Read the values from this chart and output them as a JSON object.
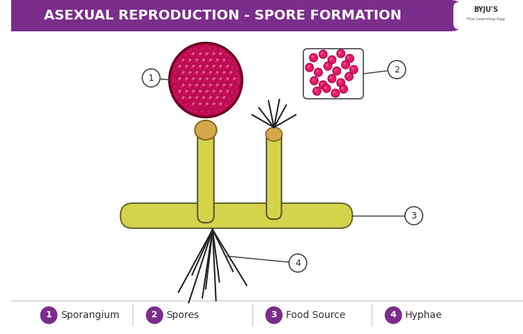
{
  "title": "ASEXUAL REPRODUCTION - SPORE FORMATION",
  "title_bg_color": "#7B2D8B",
  "title_text_color": "#FFFFFF",
  "bg_color": "#FFFFFF",
  "legend_items": [
    {
      "num": "1",
      "label": "Sporangium"
    },
    {
      "num": "2",
      "label": "Spores"
    },
    {
      "num": "3",
      "label": "Food Source"
    },
    {
      "num": "4",
      "label": "Hyphae"
    }
  ],
  "legend_circle_color": "#7B2D8B",
  "legend_text_color": "#333333",
  "yellow_color": "#D4D44A",
  "spore_ball_color": "#C8145A",
  "spore_ball_dark": "#8B0030",
  "columella_color": "#D4A84B",
  "spore_dot_color": "#E8186A"
}
